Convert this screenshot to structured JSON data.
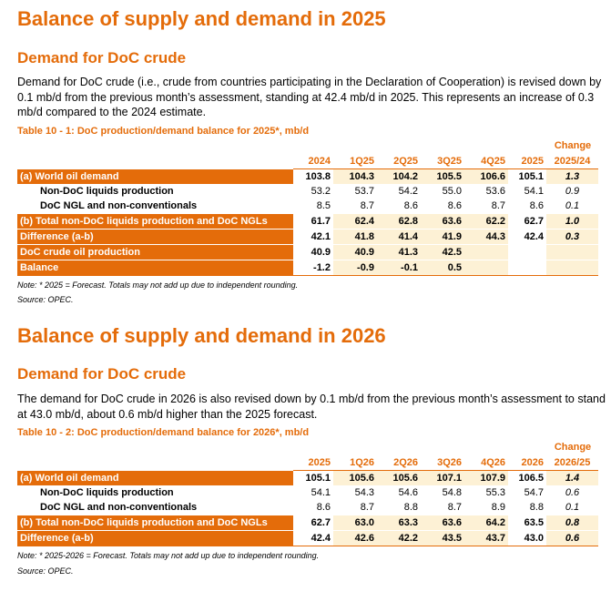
{
  "section1": {
    "title": "Balance of supply and demand in 2025",
    "subtitle": "Demand for DoC crude",
    "paragraph": "Demand for DoC crude (i.e., crude from countries participating in the Declaration of Cooperation) is revised down by 0.1 mb/d from the previous month’s assessment, standing at 42.4 mb/d in 2025. This represents an increase of 0.3 mb/d compared to the 2024 estimate.",
    "table_caption": "Table 10 - 1: DoC production/demand balance for 2025*, mb/d",
    "change_label": "Change",
    "columns": [
      "2024",
      "1Q25",
      "2Q25",
      "3Q25",
      "4Q25",
      "2025",
      "2025/24"
    ],
    "rows": [
      {
        "label": "(a) World oil demand",
        "values": [
          "103.8",
          "104.3",
          "104.2",
          "105.5",
          "106.6",
          "105.1"
        ],
        "change": "1.3"
      },
      {
        "label": "Non-DoC liquids production",
        "values": [
          "53.2",
          "53.7",
          "54.2",
          "55.0",
          "53.6",
          "54.1"
        ],
        "change": "0.9"
      },
      {
        "label": "DoC NGL and non-conventionals",
        "values": [
          "8.5",
          "8.7",
          "8.6",
          "8.6",
          "8.7",
          "8.6"
        ],
        "change": "0.1"
      },
      {
        "label": "(b) Total non-DoC liquids production and DoC NGLs",
        "values": [
          "61.7",
          "62.4",
          "62.8",
          "63.6",
          "62.2",
          "62.7"
        ],
        "change": "1.0"
      },
      {
        "label": "Difference (a-b)",
        "values": [
          "42.1",
          "41.8",
          "41.4",
          "41.9",
          "44.3",
          "42.4"
        ],
        "change": "0.3"
      },
      {
        "label": "DoC crude oil production",
        "values": [
          "40.9",
          "40.9",
          "41.3",
          "42.5",
          "",
          ""
        ],
        "change": ""
      },
      {
        "label": "Balance",
        "values": [
          "-1.2",
          "-0.9",
          "-0.1",
          "0.5",
          "",
          ""
        ],
        "change": ""
      }
    ],
    "note": "Note: * 2025 = Forecast. Totals may not add up due to independent rounding.",
    "source": "Source: OPEC."
  },
  "section2": {
    "title": "Balance of supply and demand in 2026",
    "subtitle": "Demand for DoC crude",
    "paragraph": "The demand for DoC crude in 2026 is also revised down by 0.1 mb/d from the previous month’s assessment to stand at 43.0 mb/d, about 0.6 mb/d higher than the 2025 forecast.",
    "table_caption": "Table 10 - 2: DoC production/demand balance for 2026*, mb/d",
    "change_label": "Change",
    "columns": [
      "2025",
      "1Q26",
      "2Q26",
      "3Q26",
      "4Q26",
      "2026",
      "2026/25"
    ],
    "rows": [
      {
        "label": "(a) World oil demand",
        "values": [
          "105.1",
          "105.6",
          "105.6",
          "107.1",
          "107.9",
          "106.5"
        ],
        "change": "1.4"
      },
      {
        "label": "Non-DoC liquids production",
        "values": [
          "54.1",
          "54.3",
          "54.6",
          "54.8",
          "55.3",
          "54.7"
        ],
        "change": "0.6"
      },
      {
        "label": "DoC NGL and non-conventionals",
        "values": [
          "8.6",
          "8.7",
          "8.8",
          "8.7",
          "8.9",
          "8.8"
        ],
        "change": "0.1"
      },
      {
        "label": "(b) Total non-DoC liquids production and DoC NGLs",
        "values": [
          "62.7",
          "63.0",
          "63.3",
          "63.6",
          "64.2",
          "63.5"
        ],
        "change": "0.8"
      },
      {
        "label": "Difference (a-b)",
        "values": [
          "42.4",
          "42.6",
          "42.2",
          "43.5",
          "43.7",
          "43.0"
        ],
        "change": "0.6"
      }
    ],
    "note": "Note: * 2025-2026 = Forecast. Totals may not add up due to independent rounding.",
    "source": "Source: OPEC."
  }
}
